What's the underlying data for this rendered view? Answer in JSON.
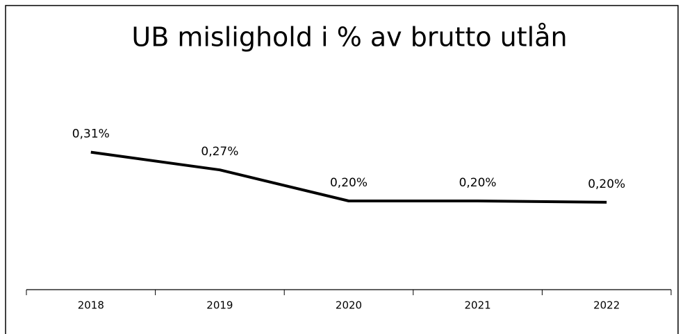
{
  "chart_data": {
    "type": "line",
    "title": "UB mislighold i % av brutto utlån",
    "categories": [
      "2018",
      "2019",
      "2020",
      "2021",
      "2022"
    ],
    "series": [
      {
        "color": "#000000",
        "values": [
          0.31,
          0.27,
          0.2,
          0.2,
          0.197
        ],
        "value_labels": [
          "0,31%",
          "0,27%",
          "0,20%",
          "0,20%",
          "0,20%"
        ]
      }
    ],
    "ylim": [
      0,
      0.4
    ]
  }
}
